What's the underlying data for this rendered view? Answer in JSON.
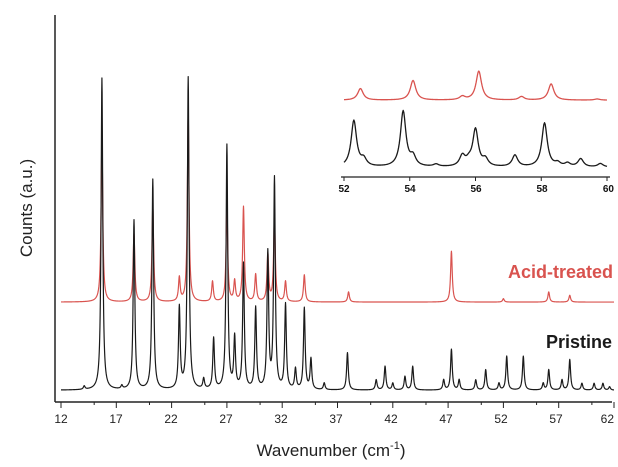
{
  "chart_data": [
    {
      "type": "line",
      "xlabel": "Wavenumber (cm⁻¹)",
      "ylabel": "Counts (a.u.)",
      "xlim": [
        12,
        62
      ],
      "ylim": [
        0,
        100
      ],
      "x_ticks": [
        12,
        15,
        17,
        20,
        22,
        25,
        27,
        30,
        32,
        35,
        37,
        40,
        42,
        45,
        47,
        50,
        52,
        55,
        57,
        60,
        62
      ],
      "tick_labels": [
        "12",
        "17",
        "22",
        "27",
        "32",
        "37",
        "42",
        "47",
        "52",
        "57",
        "62"
      ],
      "grid": false,
      "legend": "none",
      "series": [
        {
          "name": "Acid-treated",
          "color": "#d9534f",
          "baseline": 28,
          "peaks": [
            {
              "x": 15.7,
              "height": 48
            },
            {
              "x": 18.6,
              "height": 20
            },
            {
              "x": 20.3,
              "height": 28
            },
            {
              "x": 22.7,
              "height": 7
            },
            {
              "x": 23.5,
              "height": 55
            },
            {
              "x": 25.7,
              "height": 6
            },
            {
              "x": 27.0,
              "height": 28
            },
            {
              "x": 27.7,
              "height": 6
            },
            {
              "x": 28.5,
              "height": 28
            },
            {
              "x": 29.6,
              "height": 8
            },
            {
              "x": 30.7,
              "height": 14
            },
            {
              "x": 31.3,
              "height": 25
            },
            {
              "x": 32.3,
              "height": 6
            },
            {
              "x": 34.0,
              "height": 8
            },
            {
              "x": 38.0,
              "height": 3
            },
            {
              "x": 47.3,
              "height": 15
            },
            {
              "x": 52.0,
              "height": 1
            },
            {
              "x": 56.1,
              "height": 3
            },
            {
              "x": 58.0,
              "height": 2
            }
          ]
        },
        {
          "name": "Pristine",
          "color": "#1a1a1a",
          "baseline": 2,
          "peaks": [
            {
              "x": 14.1,
              "height": 1
            },
            {
              "x": 15.7,
              "height": 92
            },
            {
              "x": 17.5,
              "height": 1
            },
            {
              "x": 18.6,
              "height": 50
            },
            {
              "x": 20.3,
              "height": 62
            },
            {
              "x": 22.7,
              "height": 24
            },
            {
              "x": 23.5,
              "height": 92
            },
            {
              "x": 24.9,
              "height": 3
            },
            {
              "x": 25.8,
              "height": 15
            },
            {
              "x": 27.0,
              "height": 72
            },
            {
              "x": 27.7,
              "height": 15
            },
            {
              "x": 28.5,
              "height": 37
            },
            {
              "x": 29.6,
              "height": 24
            },
            {
              "x": 30.7,
              "height": 40
            },
            {
              "x": 31.3,
              "height": 62
            },
            {
              "x": 32.3,
              "height": 25
            },
            {
              "x": 33.2,
              "height": 6
            },
            {
              "x": 34.0,
              "height": 24
            },
            {
              "x": 34.6,
              "height": 9
            },
            {
              "x": 35.8,
              "height": 2
            },
            {
              "x": 37.9,
              "height": 11
            },
            {
              "x": 40.5,
              "height": 3
            },
            {
              "x": 41.3,
              "height": 7
            },
            {
              "x": 42.0,
              "height": 2
            },
            {
              "x": 43.1,
              "height": 4
            },
            {
              "x": 43.8,
              "height": 7
            },
            {
              "x": 46.6,
              "height": 3
            },
            {
              "x": 47.3,
              "height": 12
            },
            {
              "x": 48.0,
              "height": 3
            },
            {
              "x": 49.5,
              "height": 3
            },
            {
              "x": 50.4,
              "height": 6
            },
            {
              "x": 51.6,
              "height": 2
            },
            {
              "x": 52.3,
              "height": 10
            },
            {
              "x": 53.8,
              "height": 10
            },
            {
              "x": 55.6,
              "height": 2
            },
            {
              "x": 56.1,
              "height": 6
            },
            {
              "x": 57.3,
              "height": 3
            },
            {
              "x": 58.0,
              "height": 9
            },
            {
              "x": 59.1,
              "height": 2
            },
            {
              "x": 60.2,
              "height": 2
            },
            {
              "x": 61.0,
              "height": 2
            },
            {
              "x": 61.6,
              "height": 1
            }
          ]
        }
      ]
    },
    {
      "type": "line",
      "inset": true,
      "xlim": [
        52,
        60
      ],
      "x_ticks": [
        52,
        54,
        56,
        58,
        60
      ],
      "tick_labels": [
        "52",
        "54",
        "56",
        "58",
        "60"
      ],
      "legend": "none",
      "series": [
        {
          "name": "Acid-treated",
          "color": "#d9534f",
          "baseline": 62,
          "peaks": [
            {
              "x": 52.5,
              "height": 10
            },
            {
              "x": 54.1,
              "height": 17
            },
            {
              "x": 55.6,
              "height": 3
            },
            {
              "x": 56.1,
              "height": 25
            },
            {
              "x": 57.4,
              "height": 3
            },
            {
              "x": 58.3,
              "height": 14
            },
            {
              "x": 59.7,
              "height": 1
            }
          ]
        },
        {
          "name": "Pristine",
          "color": "#1a1a1a",
          "baseline": 4,
          "peaks": [
            {
              "x": 52.3,
              "height": 40
            },
            {
              "x": 52.6,
              "height": 6
            },
            {
              "x": 53.8,
              "height": 48
            },
            {
              "x": 54.1,
              "height": 8
            },
            {
              "x": 54.8,
              "height": 2
            },
            {
              "x": 55.6,
              "height": 9
            },
            {
              "x": 55.8,
              "height": 4
            },
            {
              "x": 56.0,
              "height": 32
            },
            {
              "x": 56.3,
              "height": 6
            },
            {
              "x": 57.2,
              "height": 10
            },
            {
              "x": 58.1,
              "height": 38
            },
            {
              "x": 58.5,
              "height": 3
            },
            {
              "x": 58.8,
              "height": 3
            },
            {
              "x": 59.2,
              "height": 7
            },
            {
              "x": 59.8,
              "height": 3
            }
          ]
        }
      ]
    }
  ],
  "labels": {
    "acid_treated": "Acid-treated",
    "pristine": "Pristine",
    "xlabel": "Wavenumber (cm",
    "xlabel_sup": "-1",
    "xlabel_end": ")",
    "ylabel": "Counts (a.u.)"
  },
  "colors": {
    "acid_treated": "#d9534f",
    "pristine": "#1a1a1a",
    "axis": "#222222"
  }
}
